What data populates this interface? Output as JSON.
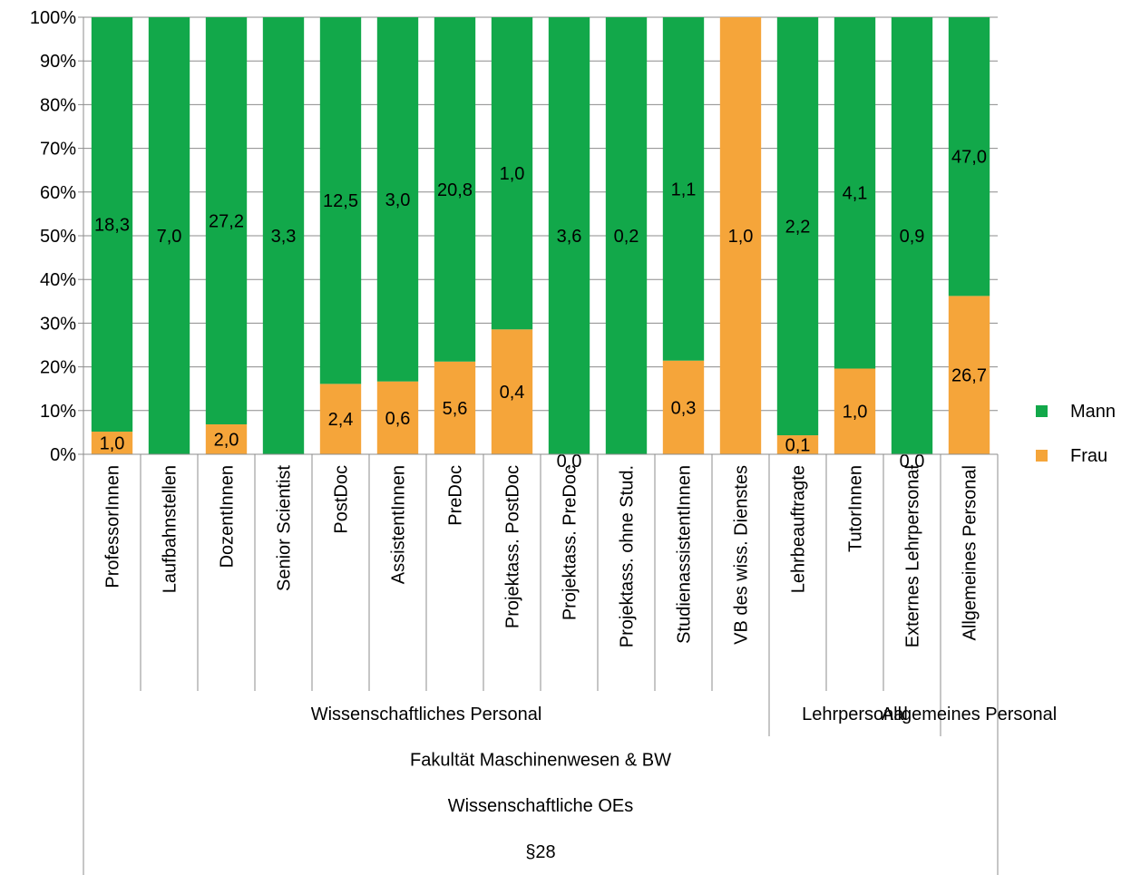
{
  "chart_data": {
    "type": "bar",
    "stacked": "percent",
    "categories": [
      "ProfessorInnen",
      "Laufbahnstellen",
      "DozentInnen",
      "Senior Scientist",
      "PostDoc",
      "AssistentInnen",
      "PreDoc",
      "Projektass. PostDoc",
      "Projektass. PreDoc",
      "Projektass. ohne Stud.",
      "StudienassistentInnen",
      "VB des wiss. Dienstes",
      "Lehrbeauftragte",
      "TutorInnen",
      "Externes Lehrpersonal",
      "Allgemeines Personal"
    ],
    "series": [
      {
        "name": "Frau",
        "color": "#F5A53A",
        "values": [
          1.0,
          0,
          2.0,
          0,
          2.4,
          0.6,
          5.6,
          0.4,
          0.0,
          0,
          0.3,
          1.0,
          0.1,
          1.0,
          0.0,
          26.7
        ],
        "labels": [
          "1,0",
          "",
          "2,0",
          "",
          "2,4",
          "0,6",
          "5,6",
          "0,4",
          "0,0",
          "",
          "0,3",
          "1,0",
          "0,1",
          "1,0",
          "0,0",
          "26,7"
        ]
      },
      {
        "name": "Mann",
        "color": "#12A84A",
        "values": [
          18.3,
          7.0,
          27.2,
          3.3,
          12.5,
          3.0,
          20.8,
          1.0,
          3.6,
          0.2,
          1.1,
          0,
          2.2,
          4.1,
          0.9,
          47.0
        ],
        "labels": [
          "18,3",
          "7,0",
          "27,2",
          "3,3",
          "12,5",
          "3,0",
          "20,8",
          "1,0",
          "3,6",
          "0,2",
          "1,1",
          "",
          "2,2",
          "4,1",
          "0,9",
          "47,0"
        ]
      }
    ],
    "ylim": [
      0,
      100
    ],
    "yticks": [
      "0%",
      "10%",
      "20%",
      "30%",
      "40%",
      "50%",
      "60%",
      "70%",
      "80%",
      "90%",
      "100%"
    ],
    "grid": true,
    "legend_position": "right",
    "group_levels": [
      [
        {
          "label": "Wissenschaftliches Personal",
          "start": 0,
          "end": 11
        },
        {
          "label": "Lehrpersonal",
          "start": 12,
          "end": 14
        },
        {
          "label": "Allgemeines Personal",
          "start": 15,
          "end": 15
        }
      ],
      [
        {
          "label": "Fakultät Maschinenwesen & BW",
          "start": 0,
          "end": 15
        }
      ],
      [
        {
          "label": "Wissenschaftliche OEs",
          "start": 0,
          "end": 15
        }
      ],
      [
        {
          "label": "§28",
          "start": 0,
          "end": 15
        }
      ]
    ]
  }
}
